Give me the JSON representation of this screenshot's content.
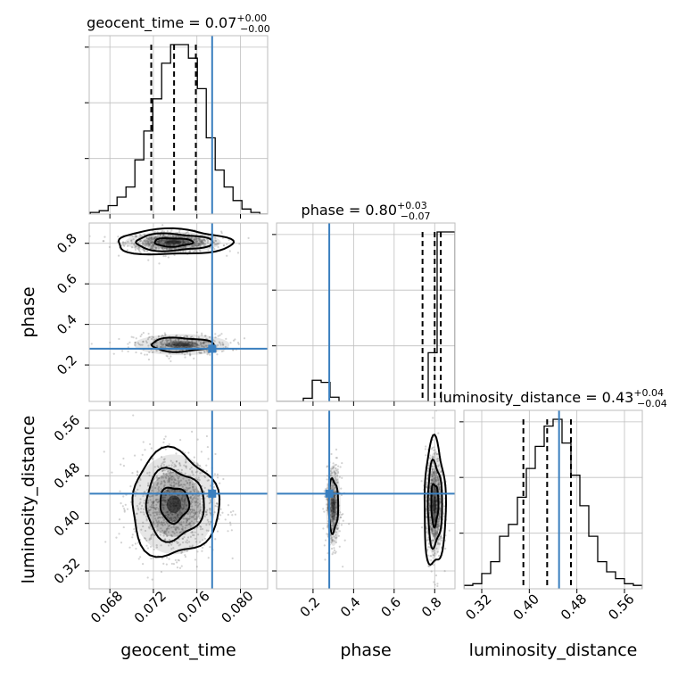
{
  "chart_data": {
    "type": "corner",
    "parameters": [
      "geocent_time",
      "phase",
      "luminosity_distance"
    ],
    "injected_values": {
      "geocent_time": 0.0774,
      "phase": 0.28,
      "luminosity_distance": 0.45
    },
    "titles": [
      {
        "param": "geocent_time",
        "text": "geocent_time = 0.07",
        "sup": "+0.00",
        "sub": "−0.00"
      },
      {
        "param": "phase",
        "text": "phase = 0.80",
        "sup": "+0.03",
        "sub": "−0.07"
      },
      {
        "param": "luminosity_distance",
        "text": "luminosity_distance = 0.43",
        "sup": "+0.04",
        "sub": "−0.04"
      }
    ],
    "axis_labels": {
      "geocent_time": "geocent_time",
      "phase": "phase",
      "luminosity_distance": "luminosity_distance"
    },
    "ticks": {
      "geocent_time": [
        "0.068",
        "0.072",
        "0.076",
        "0.080"
      ],
      "phase": [
        "0.2",
        "0.4",
        "0.6",
        "0.8"
      ],
      "luminosity_distance": [
        "0.32",
        "0.40",
        "0.48",
        "0.56"
      ]
    },
    "ranges": {
      "geocent_time": [
        0.0661,
        0.0825
      ],
      "phase": [
        0.02,
        0.9
      ],
      "luminosity_distance": [
        0.29,
        0.59
      ]
    },
    "grid": true,
    "histograms": {
      "geocent_time": {
        "edges_from": 0.0662,
        "bin_width": 0.00082,
        "counts": [
          1,
          2,
          5,
          10,
          16,
          32,
          49,
          68,
          89,
          100,
          100,
          92,
          74,
          45,
          26,
          16,
          8,
          3,
          1,
          0
        ],
        "quantiles": [
          0.0718,
          0.0739,
          0.0759
        ]
      },
      "phase": {
        "edges_from": 0.02,
        "bin_width": 0.044,
        "counts": [
          0,
          0,
          0,
          3,
          20,
          18,
          4,
          0,
          0,
          0,
          0,
          0,
          0,
          0,
          0,
          0,
          0,
          46,
          160,
          160
        ],
        "quantiles": [
          0.74,
          0.8,
          0.83
        ]
      },
      "luminosity_distance": {
        "edges_from": 0.29,
        "bin_width": 0.015,
        "counts": [
          2,
          3,
          9,
          16,
          31,
          38,
          54,
          71,
          84,
          96,
          100,
          86,
          67,
          49,
          31,
          16,
          10,
          6,
          3,
          2
        ],
        "quantiles": [
          0.39,
          0.43,
          0.47
        ]
      }
    }
  }
}
